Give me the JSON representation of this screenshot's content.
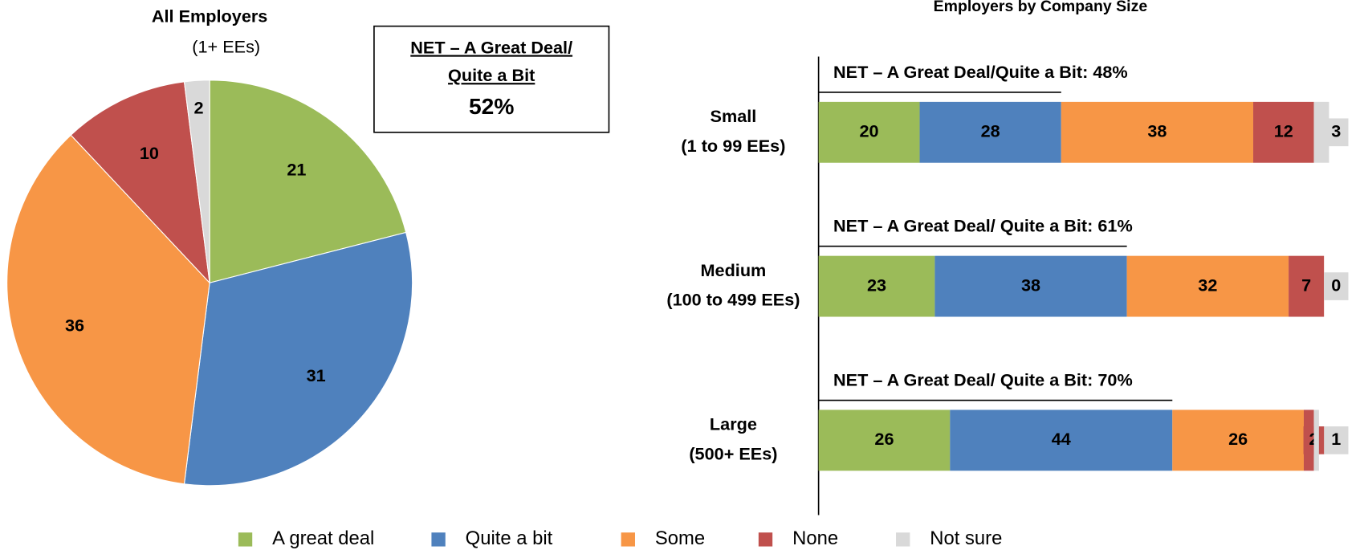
{
  "chart_data": [
    {
      "type": "pie",
      "title": "All Employers",
      "subtitle": "(1+ EEs)",
      "values": [
        21,
        31,
        36,
        10,
        2
      ],
      "colors": [
        "#9bbb59",
        "#4f81bd",
        "#f79646",
        "#c0504d",
        "#d9d9d9"
      ],
      "annotation": {
        "lines": [
          "NET – A Great Deal/",
          "Quite a Bit"
        ],
        "value": "52%"
      }
    },
    {
      "type": "bar",
      "orientation": "horizontal",
      "stacked": true,
      "title": "Employers by Company Size",
      "categories": [
        [
          "Small",
          "(1 to 99 EEs)"
        ],
        [
          "Medium",
          "(100 to 499 EEs)"
        ],
        [
          "Large",
          "(500+ EEs)"
        ]
      ],
      "series": [
        {
          "name": "A great deal",
          "color": "#9bbb59",
          "values": [
            20,
            23,
            26
          ]
        },
        {
          "name": "Quite a bit",
          "color": "#4f81bd",
          "values": [
            28,
            38,
            44
          ]
        },
        {
          "name": "Some",
          "color": "#f79646",
          "values": [
            38,
            32,
            26
          ]
        },
        {
          "name": "None",
          "color": "#c0504d",
          "values": [
            12,
            7,
            2
          ]
        },
        {
          "name": "Not sure",
          "color": "#d9d9d9",
          "values": [
            3,
            0,
            1
          ]
        }
      ],
      "xlim": [
        0,
        100
      ],
      "annotations": [
        "NET – A Great Deal/Quite a Bit: 48%",
        "NET – A Great Deal/ Quite a Bit: 61%",
        "NET – A Great Deal/ Quite a Bit: 70%"
      ],
      "legend": "bottom"
    }
  ]
}
